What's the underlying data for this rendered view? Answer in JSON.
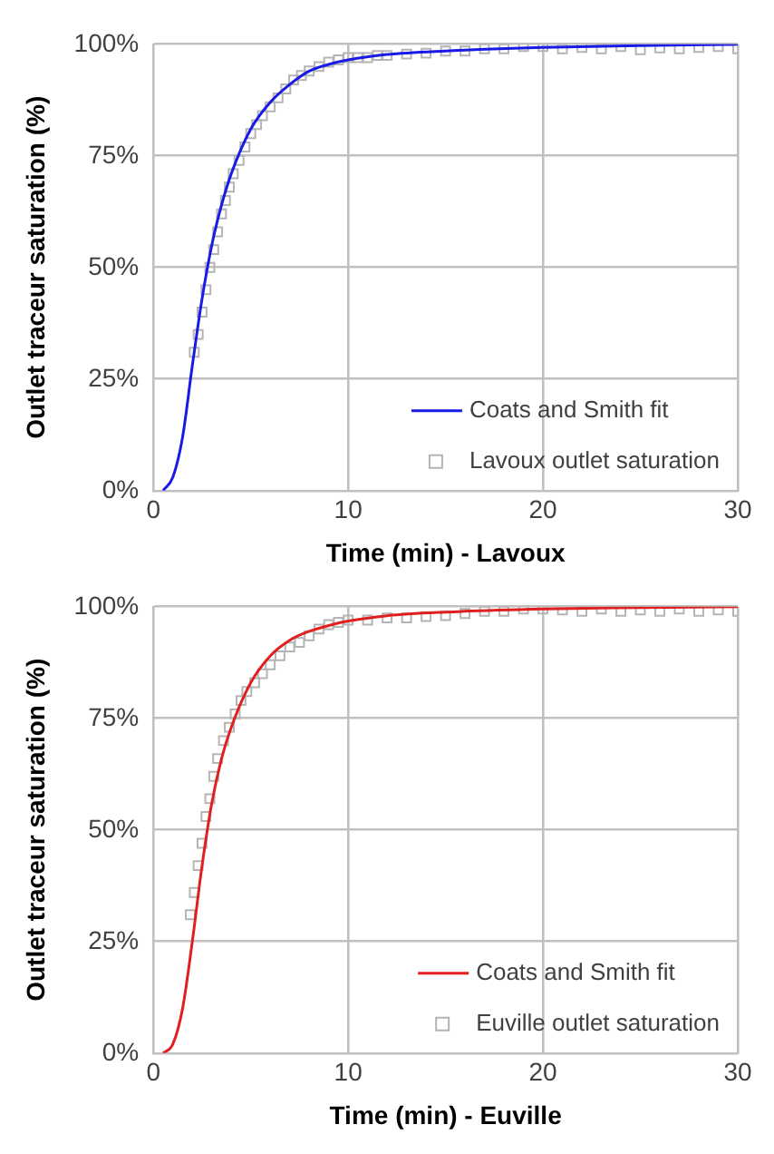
{
  "chart_data": [
    {
      "type": "scatter",
      "xlabel": "Time (min) - Lavoux",
      "ylabel": "Outlet traceur saturation (%)",
      "xlim": [
        0,
        30
      ],
      "xticks": [
        0,
        10,
        20,
        30
      ],
      "ylim": [
        0,
        100
      ],
      "yticks": [
        {
          "value": 0,
          "label": "0%"
        },
        {
          "value": 25,
          "label": "25%"
        },
        {
          "value": 50,
          "label": "50%"
        },
        {
          "value": 75,
          "label": "75%"
        },
        {
          "value": 100,
          "label": "100%"
        }
      ],
      "grid": true,
      "legend": "bottom right",
      "series": [
        {
          "name": "Coats and Smith fit",
          "type": "line",
          "color": "#1a1ae6",
          "marker": "none",
          "x": [
            0.5,
            1,
            1.5,
            2,
            2.5,
            3,
            3.5,
            4,
            5,
            6,
            7,
            8,
            9,
            10,
            12,
            15,
            20,
            25,
            30
          ],
          "values": [
            0,
            3,
            12,
            28,
            43,
            55,
            64,
            71,
            81,
            87,
            91,
            94,
            95.5,
            96.5,
            97.7,
            98.5,
            99.3,
            99.7,
            100
          ]
        },
        {
          "name": "Lavoux outlet saturation",
          "color": "#b4b4b4",
          "marker": "square",
          "x": [
            2.1,
            2.3,
            2.5,
            2.7,
            2.9,
            3.1,
            3.3,
            3.5,
            3.7,
            3.9,
            4.1,
            4.4,
            4.7,
            5.0,
            5.3,
            5.6,
            6.0,
            6.4,
            6.8,
            7.2,
            7.6,
            8.0,
            8.5,
            9.0,
            9.5,
            10,
            10.5,
            11,
            11.5,
            12,
            13,
            14,
            15,
            16,
            17,
            18,
            19,
            20,
            21,
            22,
            23,
            24,
            25,
            26,
            27,
            28,
            29,
            30
          ],
          "values": [
            31,
            35,
            40,
            45,
            50,
            54,
            58,
            62,
            65,
            68,
            71,
            74,
            77,
            80,
            82,
            84,
            86,
            88,
            90,
            92,
            93,
            94,
            95,
            96,
            96.5,
            97,
            97,
            97,
            97.5,
            97.5,
            97.8,
            98,
            98.5,
            98.5,
            99,
            99,
            99.5,
            99.5,
            99,
            99.3,
            99,
            99.5,
            98.8,
            99.2,
            99,
            99.3,
            99.5,
            99
          ]
        }
      ]
    },
    {
      "type": "scatter",
      "xlabel": "Time (min) - Euville",
      "ylabel": "Outlet traceur saturation (%)",
      "xlim": [
        0,
        30
      ],
      "xticks": [
        0,
        10,
        20,
        30
      ],
      "ylim": [
        0,
        100
      ],
      "yticks": [
        {
          "value": 0,
          "label": "0%"
        },
        {
          "value": 25,
          "label": "25%"
        },
        {
          "value": 50,
          "label": "50%"
        },
        {
          "value": 75,
          "label": "75%"
        },
        {
          "value": 100,
          "label": "100%"
        }
      ],
      "grid": true,
      "legend": "bottom right",
      "series": [
        {
          "name": "Coats and Smith fit",
          "type": "line",
          "color": "#e02020",
          "marker": "none",
          "x": [
            0.5,
            1,
            1.5,
            2,
            2.5,
            3,
            3.5,
            4,
            5,
            6,
            7,
            8,
            9,
            10,
            12,
            15,
            20,
            25,
            30
          ],
          "values": [
            0,
            2,
            10,
            25,
            42,
            56,
            66,
            73,
            83,
            89,
            92.5,
            94.5,
            95.8,
            96.8,
            98,
            98.8,
            99.5,
            99.8,
            100
          ]
        },
        {
          "name": "Euville outlet saturation",
          "color": "#b4b4b4",
          "marker": "square",
          "x": [
            1.9,
            2.1,
            2.3,
            2.5,
            2.7,
            2.9,
            3.1,
            3.3,
            3.6,
            3.9,
            4.2,
            4.5,
            4.8,
            5.2,
            5.6,
            6,
            6.5,
            7,
            7.5,
            8,
            8.5,
            9,
            9.5,
            10,
            11,
            12,
            13,
            14,
            15,
            16,
            17,
            18,
            19,
            20,
            21,
            22,
            23,
            24,
            25,
            26,
            27,
            28,
            29,
            30
          ],
          "values": [
            31,
            36,
            42,
            47,
            53,
            57,
            62,
            66,
            70,
            73,
            76,
            79,
            81,
            83,
            85,
            87,
            89,
            91,
            92,
            93.5,
            95,
            96,
            96.5,
            97,
            97,
            97.5,
            97.5,
            97.8,
            98,
            98.5,
            99,
            99,
            99.5,
            99.5,
            99.3,
            99,
            99.5,
            99,
            99.3,
            99,
            99.5,
            99,
            99.3,
            99
          ]
        }
      ]
    }
  ]
}
